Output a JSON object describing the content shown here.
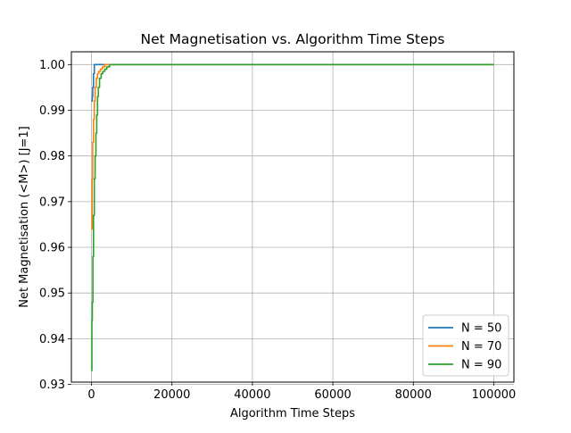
{
  "chart_data": {
    "type": "line",
    "title": "Net Magnetisation vs. Algorithm Time Steps",
    "xlabel": "Algorithm Time Steps",
    "ylabel": "Net Magnetisation (<M>) [J=1]",
    "xlim": [
      -5000,
      105000
    ],
    "ylim": [
      0.9305,
      1.0028
    ],
    "xticks": [
      0,
      20000,
      40000,
      60000,
      80000,
      100000
    ],
    "xtick_labels": [
      "0",
      "20000",
      "40000",
      "60000",
      "80000",
      "100000"
    ],
    "yticks": [
      0.93,
      0.94,
      0.95,
      0.96,
      0.97,
      0.98,
      0.99,
      1.0
    ],
    "ytick_labels": [
      "0.93",
      "0.94",
      "0.95",
      "0.96",
      "0.97",
      "0.98",
      "0.99",
      "1.00"
    ],
    "grid": true,
    "legend_position": "lower-right",
    "series": [
      {
        "name": "N = 50",
        "color": "#1f77b4",
        "x": [
          0,
          200,
          300,
          500,
          700,
          100000
        ],
        "y": [
          0.992,
          0.993,
          0.995,
          0.998,
          1.0,
          1.0
        ]
      },
      {
        "name": "N = 70",
        "color": "#ff7f0e",
        "x": [
          0,
          150,
          300,
          500,
          700,
          900,
          1200,
          1500,
          1800,
          2200,
          2700,
          3300,
          100000
        ],
        "y": [
          0.964,
          0.975,
          0.983,
          0.988,
          0.992,
          0.995,
          0.997,
          0.998,
          0.9985,
          0.999,
          0.9995,
          1.0,
          1.0
        ]
      },
      {
        "name": "N = 90",
        "color": "#2ca02c",
        "x": [
          0,
          100,
          200,
          350,
          500,
          700,
          900,
          1100,
          1300,
          1500,
          1700,
          2000,
          2400,
          2800,
          3300,
          3800,
          4500,
          100000
        ],
        "y": [
          0.933,
          0.944,
          0.948,
          0.958,
          0.967,
          0.975,
          0.98,
          0.985,
          0.989,
          0.993,
          0.995,
          0.997,
          0.998,
          0.9985,
          0.999,
          0.9995,
          1.0,
          1.0
        ]
      }
    ]
  }
}
